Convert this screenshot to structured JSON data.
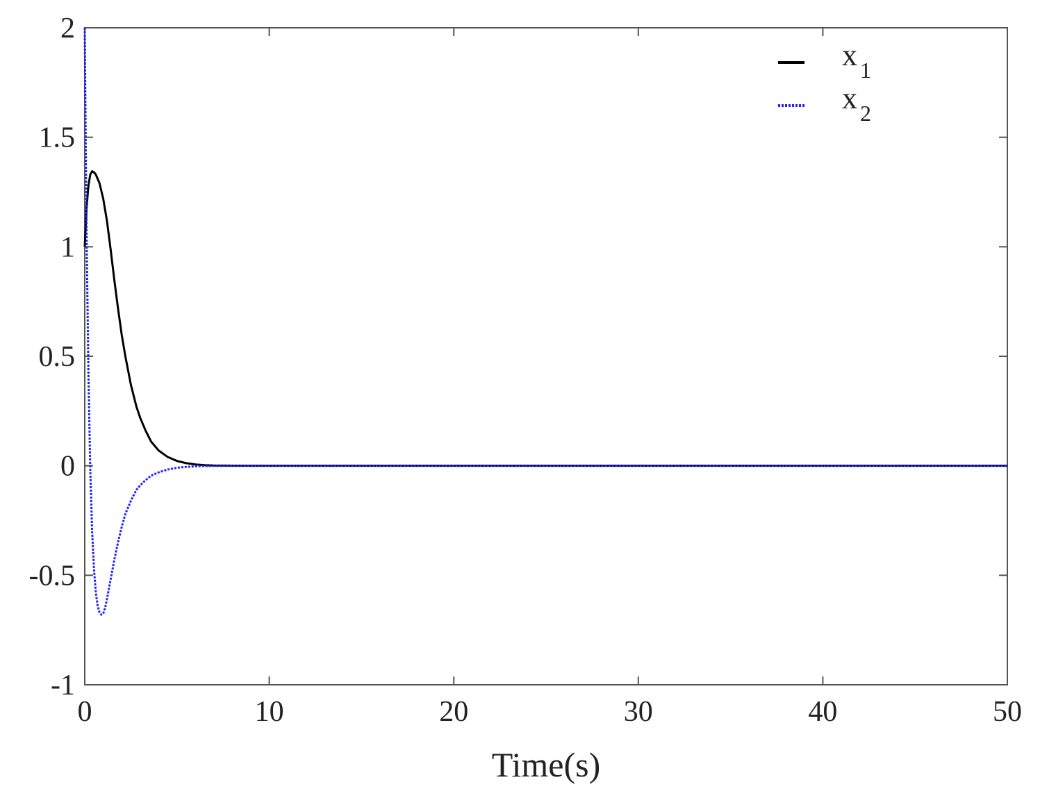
{
  "chart_data": {
    "type": "line",
    "title": "",
    "xlabel": "Time(s)",
    "ylabel": "",
    "xlim": [
      0,
      50
    ],
    "ylim": [
      -1,
      2
    ],
    "xticks": [
      0,
      10,
      20,
      30,
      40,
      50
    ],
    "yticks": [
      -1,
      -0.5,
      0,
      0.5,
      1,
      1.5,
      2
    ],
    "xtick_labels": [
      "0",
      "10",
      "20",
      "30",
      "40",
      "50"
    ],
    "ytick_labels": [
      "-1",
      "-0.5",
      "0",
      "0.5",
      "1",
      "1.5",
      "2"
    ],
    "grid": false,
    "legend_position": "top-right",
    "series": [
      {
        "name": "x1",
        "name_base": "x",
        "name_sub": "1",
        "color": "#000000",
        "style": "solid",
        "x": [
          0,
          0.1,
          0.2,
          0.3,
          0.4,
          0.5,
          0.6,
          0.7,
          0.8,
          1.0,
          1.2,
          1.4,
          1.6,
          1.8,
          2.0,
          2.2,
          2.5,
          2.8,
          3.0,
          3.3,
          3.6,
          4.0,
          4.5,
          5.0,
          5.5,
          6.0,
          6.5,
          7.0,
          8.0,
          9.0,
          10.0,
          15.0,
          20.0,
          30.0,
          40.0,
          50.0
        ],
        "y": [
          1.0,
          1.18,
          1.28,
          1.33,
          1.345,
          1.34,
          1.33,
          1.31,
          1.29,
          1.22,
          1.12,
          0.99,
          0.85,
          0.72,
          0.6,
          0.5,
          0.37,
          0.27,
          0.22,
          0.16,
          0.11,
          0.07,
          0.04,
          0.022,
          0.012,
          0.006,
          0.003,
          0.0015,
          0.0005,
          0.0002,
          0.0,
          0.0,
          0.0,
          0.0,
          0.0,
          0.0
        ]
      },
      {
        "name": "x2",
        "name_base": "x",
        "name_sub": "2",
        "color": "#1f1fff",
        "style": "dotted",
        "x": [
          0,
          0.05,
          0.1,
          0.2,
          0.3,
          0.4,
          0.5,
          0.6,
          0.7,
          0.8,
          0.9,
          1.0,
          1.1,
          1.2,
          1.4,
          1.6,
          1.8,
          2.0,
          2.2,
          2.5,
          2.8,
          3.0,
          3.3,
          3.6,
          4.0,
          4.5,
          5.0,
          5.5,
          6.0,
          6.5,
          7.0,
          8.0,
          9.0,
          10.0,
          15.0,
          20.0,
          30.0,
          40.0,
          50.0
        ],
        "y": [
          2.0,
          1.5,
          1.05,
          0.42,
          -0.02,
          -0.3,
          -0.47,
          -0.58,
          -0.64,
          -0.67,
          -0.68,
          -0.675,
          -0.65,
          -0.61,
          -0.52,
          -0.43,
          -0.35,
          -0.28,
          -0.22,
          -0.16,
          -0.11,
          -0.09,
          -0.065,
          -0.045,
          -0.03,
          -0.017,
          -0.009,
          -0.005,
          -0.0025,
          -0.0012,
          -0.0006,
          -0.0002,
          0.0,
          0.0,
          0.0,
          0.0,
          0.0,
          0.0,
          0.0
        ]
      }
    ]
  }
}
